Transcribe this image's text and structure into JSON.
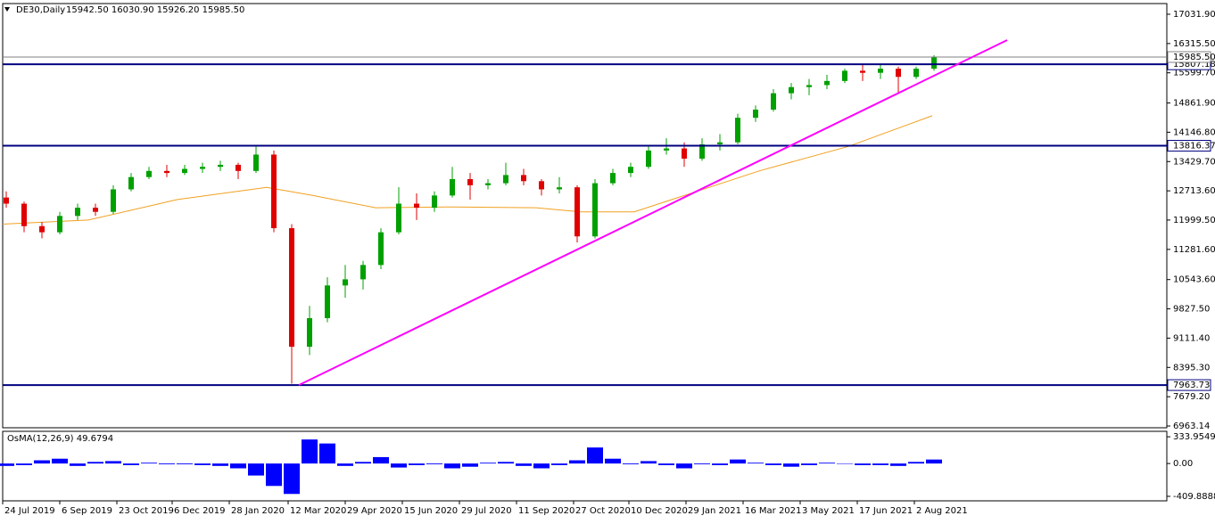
{
  "chart_data": [
    {
      "type": "candlestick",
      "title": "DE30,Daily",
      "subtitle": "15942.50 16030.90 15926.20 15985.50",
      "up_color": "#00a000",
      "down_color": "#e00000",
      "x": [
        2,
        12,
        22,
        32,
        42,
        52,
        62,
        72,
        82,
        92,
        102,
        112,
        122,
        132,
        142,
        152,
        162,
        172,
        182,
        192,
        202,
        212,
        222,
        232,
        242,
        252,
        262,
        272,
        282,
        292,
        302,
        312,
        322,
        332,
        342,
        352,
        362,
        372,
        382,
        392,
        402,
        412,
        422,
        432,
        442,
        452,
        462,
        472,
        482,
        492,
        502,
        512,
        522
      ],
      "ohlc": [
        [
          12550,
          12700,
          12300,
          12400
        ],
        [
          12400,
          12450,
          11700,
          11850
        ],
        [
          11850,
          11950,
          11550,
          11700
        ],
        [
          11700,
          12200,
          11650,
          12100
        ],
        [
          12100,
          12400,
          12000,
          12300
        ],
        [
          12300,
          12400,
          12100,
          12200
        ],
        [
          12200,
          12850,
          12150,
          12750
        ],
        [
          12750,
          13150,
          12700,
          13050
        ],
        [
          13050,
          13300,
          13000,
          13200
        ],
        [
          13200,
          13350,
          13050,
          13150
        ],
        [
          13150,
          13350,
          13100,
          13250
        ],
        [
          13250,
          13400,
          13150,
          13300
        ],
        [
          13300,
          13450,
          13200,
          13350
        ],
        [
          13350,
          13400,
          13000,
          13200
        ],
        [
          13200,
          13800,
          13150,
          13600
        ],
        [
          13600,
          13700,
          11700,
          11800
        ],
        [
          11800,
          11900,
          8000,
          8900
        ],
        [
          8900,
          9900,
          8700,
          9600
        ],
        [
          9600,
          10600,
          9500,
          10400
        ],
        [
          10400,
          10900,
          10100,
          10550
        ],
        [
          10550,
          11000,
          10300,
          10900
        ],
        [
          10900,
          11800,
          10800,
          11700
        ],
        [
          11700,
          12800,
          11650,
          12400
        ],
        [
          12400,
          12650,
          12000,
          12300
        ],
        [
          12300,
          12700,
          12200,
          12600
        ],
        [
          12600,
          13300,
          12550,
          13000
        ],
        [
          13000,
          13150,
          12500,
          12850
        ],
        [
          12850,
          13000,
          12750,
          12900
        ],
        [
          12900,
          13400,
          12850,
          13100
        ],
        [
          13100,
          13250,
          12850,
          12950
        ],
        [
          12950,
          13000,
          12600,
          12750
        ],
        [
          12750,
          13050,
          12650,
          12800
        ],
        [
          12800,
          12850,
          11450,
          11600
        ],
        [
          11600,
          13000,
          11550,
          12900
        ],
        [
          12900,
          13250,
          12850,
          13150
        ],
        [
          13150,
          13400,
          13050,
          13300
        ],
        [
          13300,
          13800,
          13250,
          13700
        ],
        [
          13700,
          14000,
          13600,
          13750
        ],
        [
          13750,
          13900,
          13300,
          13500
        ],
        [
          13500,
          14000,
          13450,
          13850
        ],
        [
          13850,
          14100,
          13700,
          13900
        ],
        [
          13900,
          14600,
          13850,
          14500
        ],
        [
          14500,
          14800,
          14400,
          14700
        ],
        [
          14700,
          15200,
          14650,
          15100
        ],
        [
          15100,
          15350,
          14950,
          15250
        ],
        [
          15250,
          15450,
          15050,
          15300
        ],
        [
          15300,
          15550,
          15200,
          15400
        ],
        [
          15400,
          15700,
          15350,
          15650
        ],
        [
          15650,
          15800,
          15400,
          15600
        ],
        [
          15600,
          15800,
          15450,
          15700
        ],
        [
          15700,
          15750,
          15100,
          15500
        ],
        [
          15500,
          15750,
          15450,
          15700
        ],
        [
          15700,
          16030.9,
          15650,
          15985.5
        ]
      ],
      "ma": {
        "color": "#f0a020",
        "x": [
          0,
          48,
          98,
          148,
          174,
          209,
          249,
          299,
          324,
          354,
          389,
          424,
          474,
          521
        ],
        "values": [
          11900,
          12000,
          12500,
          12800,
          12600,
          12300,
          12320,
          12300,
          12200,
          12200,
          12700,
          13200,
          13800,
          14550
        ]
      },
      "trendline": {
        "color": "#ff00ff",
        "x": [
          166,
          563
        ],
        "values": [
          7963.73,
          16400
        ]
      },
      "hlines": [
        15807.18,
        13816.37,
        7963.73
      ],
      "hline_color": "#000080",
      "current_price": {
        "value": 15985.5,
        "label": "15985.50"
      },
      "xlim": [
        0,
        652.5
      ],
      "ylim": [
        6920,
        17293
      ],
      "yticks": [
        {
          "value": 17031.9,
          "label": "17031.90"
        },
        {
          "value": 16315.5,
          "label": "16315.50"
        },
        {
          "value": 15599.7,
          "label": "15599.70"
        },
        {
          "value": 14861.9,
          "label": "14861.90"
        },
        {
          "value": 14146.8,
          "label": "14146.80"
        },
        {
          "value": 13429.7,
          "label": "13429.70"
        },
        {
          "value": 12713.6,
          "label": "12713.60"
        },
        {
          "value": 11999.5,
          "label": "11999.50"
        },
        {
          "value": 11281.6,
          "label": "11281.60"
        },
        {
          "value": 10543.6,
          "label": "10543.60"
        },
        {
          "value": 9827.5,
          "label": "9827.50"
        },
        {
          "value": 9111.4,
          "label": "9111.40"
        },
        {
          "value": 8395.3,
          "label": "8395.30"
        },
        {
          "value": 7679.2,
          "label": "7679.20"
        },
        6963.14
      ],
      "xticks": [
        {
          "value": 0,
          "label": "24 Jul 2019"
        },
        {
          "value": 32,
          "label": "6 Sep 2019"
        },
        {
          "value": 64,
          "label": "23 Oct 2019"
        },
        {
          "value": 95,
          "label": "6 Dec 2019"
        },
        {
          "value": 127,
          "label": "28 Jan 2020"
        },
        {
          "value": 160,
          "label": "12 Mar 2020"
        },
        {
          "value": 192,
          "label": "29 Apr 2020"
        },
        {
          "value": 224,
          "label": "15 Jun 2020"
        },
        {
          "value": 256,
          "label": "29 Jul 2020"
        },
        {
          "value": 288,
          "label": "11 Sep 2020"
        },
        {
          "value": 320,
          "label": "27 Oct 2020"
        },
        {
          "value": 351,
          "label": "10 Dec 2020"
        },
        {
          "value": 383,
          "label": "29 Jan 2021"
        },
        {
          "value": 415,
          "label": "16 Mar 2021"
        },
        {
          "value": 447,
          "label": "3 May 2021"
        },
        {
          "value": 479,
          "label": "17 Jun 2021"
        },
        {
          "value": 511,
          "label": "2 Aug 2021"
        }
      ]
    },
    {
      "type": "bar",
      "title": "OsMA(12,26,9) 49.6794",
      "color": "#0000ff",
      "x": [
        2,
        12,
        22,
        32,
        42,
        52,
        62,
        72,
        82,
        92,
        102,
        112,
        122,
        132,
        142,
        152,
        162,
        172,
        182,
        192,
        202,
        212,
        222,
        232,
        242,
        252,
        262,
        272,
        282,
        292,
        302,
        312,
        322,
        332,
        342,
        352,
        362,
        372,
        382,
        392,
        402,
        412,
        422,
        432,
        442,
        452,
        462,
        472,
        482,
        492,
        502,
        512,
        522
      ],
      "values": [
        -30,
        -20,
        40,
        60,
        -30,
        20,
        30,
        -20,
        10,
        -10,
        -10,
        -20,
        -30,
        -60,
        -150,
        -280,
        -380,
        300,
        250,
        -30,
        20,
        80,
        -50,
        -20,
        -10,
        -60,
        -40,
        10,
        20,
        -30,
        -60,
        -20,
        40,
        200,
        60,
        -10,
        30,
        -20,
        -60,
        -10,
        -20,
        50,
        10,
        -20,
        -40,
        -20,
        10,
        0,
        -20,
        -20,
        -30,
        20,
        49.6794
      ],
      "xlim": [
        0,
        652.5
      ],
      "ylim": [
        -466,
        402
      ],
      "yticks": [
        333.9549,
        {
          "value": 0,
          "label": "0.00"
        },
        -409.8888
      ]
    }
  ]
}
